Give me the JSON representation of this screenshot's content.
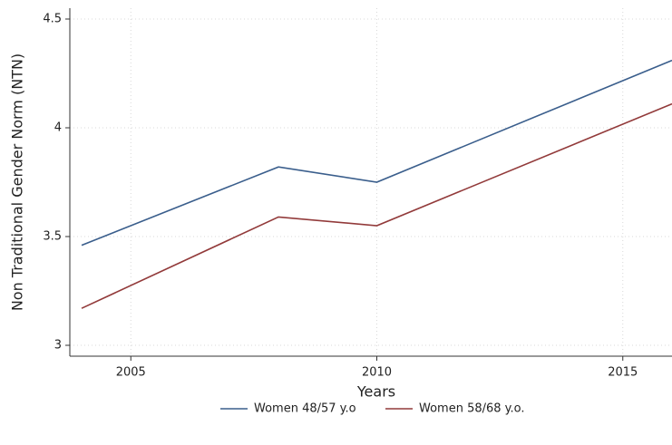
{
  "chart_data": {
    "type": "line",
    "x": [
      2004,
      2008,
      2010,
      2016
    ],
    "xlabel": "Years",
    "ylabel": "Non Traditional Gender Norm (NTN)",
    "series": [
      {
        "name": "Women 48/57 y.o",
        "color": "#3a5e8c",
        "values": [
          3.46,
          3.82,
          3.75,
          4.31
        ]
      },
      {
        "name": "Women 58/68 y.o.",
        "color": "#923a3a",
        "values": [
          3.17,
          3.59,
          3.55,
          4.11
        ]
      }
    ],
    "xlim": [
      2003.76,
      2016
    ],
    "xticks": [
      2005,
      2010,
      2015
    ],
    "ylim": [
      2.95,
      4.55
    ],
    "yticks": [
      3,
      3.5,
      4,
      4.5
    ],
    "grid": true,
    "legend": "bottom"
  }
}
